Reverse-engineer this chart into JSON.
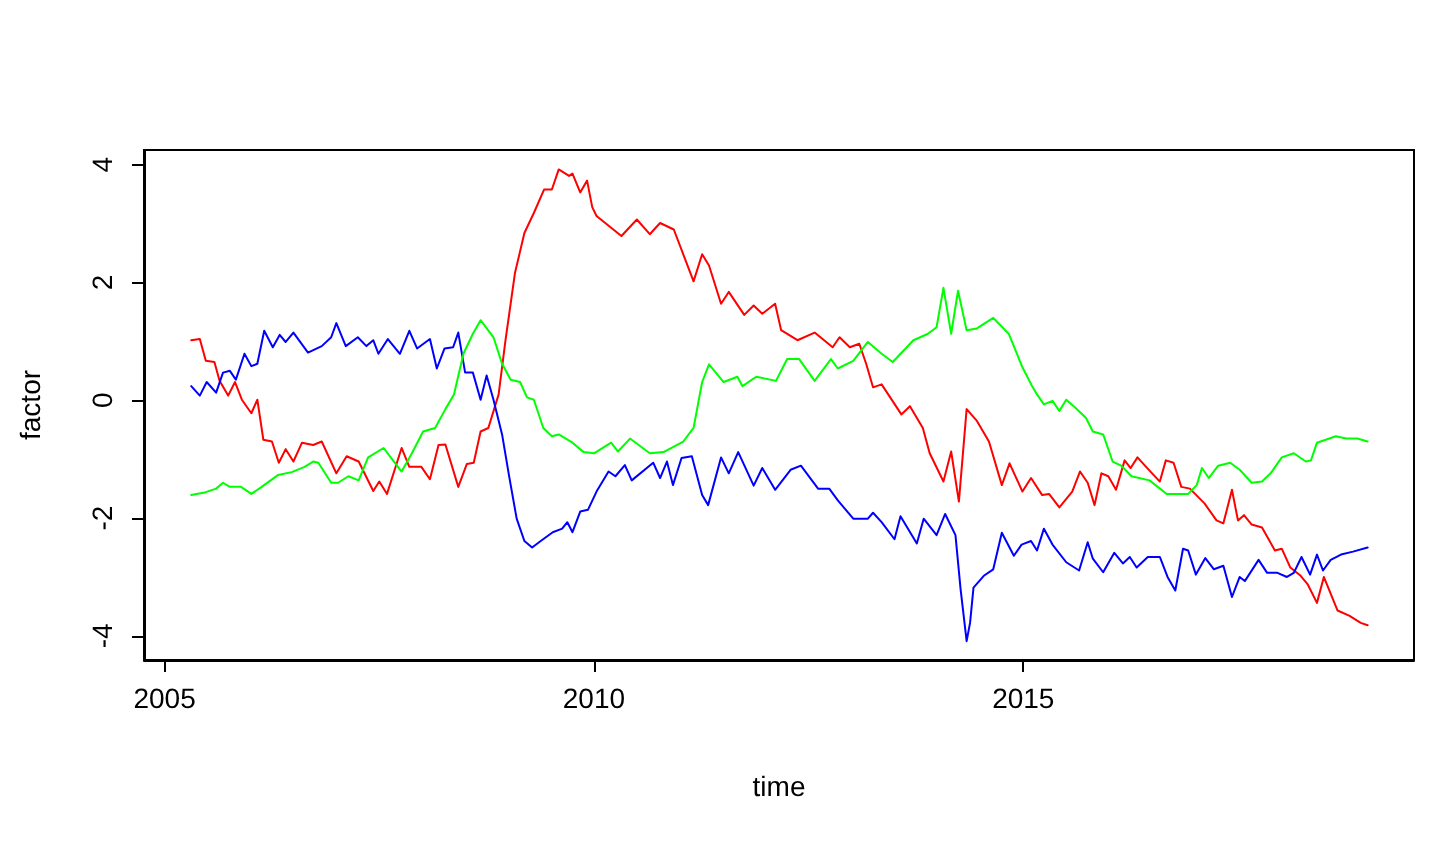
{
  "chart_data": {
    "type": "line",
    "xlabel": "time",
    "ylabel": "factor",
    "xlim": [
      2004.76,
      2019.55
    ],
    "ylim": [
      -4.41,
      4.25
    ],
    "xticks": [
      2005,
      2010,
      2015
    ],
    "yticks": [
      -4,
      -2,
      0,
      2,
      4
    ],
    "marker": "none",
    "line_style": "solid",
    "series": [
      {
        "color": "#ff0000",
        "x": [
          2005.31,
          2005.41,
          2005.48,
          2005.58,
          2005.64,
          2005.74,
          2005.82,
          2005.9,
          2006.01,
          2006.08,
          2006.15,
          2006.25,
          2006.33,
          2006.41,
          2006.5,
          2006.6,
          2006.73,
          2006.83,
          2007.0,
          2007.12,
          2007.26,
          2007.43,
          2007.5,
          2007.59,
          2007.76,
          2007.85,
          2007.99,
          2008.09,
          2008.19,
          2008.27,
          2008.42,
          2008.52,
          2008.6,
          2008.68,
          2008.77,
          2008.89,
          2008.97,
          2009.08,
          2009.19,
          2009.3,
          2009.42,
          2009.51,
          2009.59,
          2009.71,
          2009.75,
          2009.84,
          2009.92,
          2009.98,
          2010.03,
          2010.32,
          2010.5,
          2010.65,
          2010.77,
          2010.93,
          2011.16,
          2011.26,
          2011.34,
          2011.48,
          2011.57,
          2011.75,
          2011.86,
          2011.96,
          2012.11,
          2012.18,
          2012.37,
          2012.57,
          2012.78,
          2012.86,
          2012.98,
          2013.09,
          2013.17,
          2013.25,
          2013.35,
          2013.58,
          2013.68,
          2013.83,
          2013.91,
          2014.07,
          2014.16,
          2014.25,
          2014.34,
          2014.46,
          2014.6,
          2014.75,
          2014.84,
          2014.99,
          2015.09,
          2015.22,
          2015.3,
          2015.42,
          2015.57,
          2015.66,
          2015.75,
          2015.83,
          2015.91,
          2015.99,
          2016.08,
          2016.18,
          2016.25,
          2016.33,
          2016.43,
          2016.59,
          2016.66,
          2016.75,
          2016.84,
          2016.94,
          2017.11,
          2017.25,
          2017.33,
          2017.43,
          2017.5,
          2017.57,
          2017.66,
          2017.78,
          2017.93,
          2018.01,
          2018.11,
          2018.23,
          2018.31,
          2018.42,
          2018.5,
          2018.66,
          2018.8,
          2018.93,
          2019.01
        ],
        "values": [
          1.02,
          1.04,
          0.67,
          0.65,
          0.33,
          0.08,
          0.31,
          0.01,
          -0.22,
          0.01,
          -0.67,
          -0.7,
          -1.06,
          -0.83,
          -1.04,
          -0.72,
          -0.76,
          -0.7,
          -1.24,
          -0.95,
          -1.04,
          -1.54,
          -1.38,
          -1.59,
          -0.81,
          -1.13,
          -1.13,
          -1.34,
          -0.76,
          -0.75,
          -1.47,
          -1.08,
          -1.06,
          -0.53,
          -0.47,
          0.1,
          1.02,
          2.16,
          2.84,
          3.18,
          3.58,
          3.58,
          3.92,
          3.81,
          3.85,
          3.53,
          3.73,
          3.28,
          3.13,
          2.79,
          3.07,
          2.82,
          3.01,
          2.9,
          2.02,
          2.48,
          2.29,
          1.64,
          1.84,
          1.45,
          1.61,
          1.47,
          1.64,
          1.19,
          1.02,
          1.15,
          0.9,
          1.07,
          0.9,
          0.96,
          0.62,
          0.22,
          0.27,
          -0.24,
          -0.1,
          -0.47,
          -0.9,
          -1.38,
          -0.87,
          -1.72,
          -0.15,
          -0.35,
          -0.7,
          -1.44,
          -1.07,
          -1.55,
          -1.32,
          -1.61,
          -1.59,
          -1.82,
          -1.55,
          -1.21,
          -1.4,
          -1.78,
          -1.24,
          -1.29,
          -1.52,
          -1.02,
          -1.15,
          -0.97,
          -1.13,
          -1.38,
          -1.02,
          -1.06,
          -1.47,
          -1.5,
          -1.75,
          -2.04,
          -2.09,
          -1.52,
          -2.04,
          -1.95,
          -2.11,
          -2.16,
          -2.55,
          -2.52,
          -2.84,
          -2.98,
          -3.12,
          -3.44,
          -3.0,
          -3.57,
          -3.66,
          -3.78,
          -3.82
        ]
      },
      {
        "color": "#0000ff",
        "x": [
          2005.31,
          2005.41,
          2005.49,
          2005.6,
          2005.68,
          2005.76,
          2005.83,
          2005.93,
          2006.01,
          2006.08,
          2006.16,
          2006.26,
          2006.34,
          2006.41,
          2006.5,
          2006.67,
          2006.83,
          2006.94,
          2007.0,
          2007.11,
          2007.25,
          2007.35,
          2007.43,
          2007.49,
          2007.6,
          2007.74,
          2007.85,
          2007.94,
          2008.09,
          2008.17,
          2008.26,
          2008.36,
          2008.42,
          2008.5,
          2008.59,
          2008.68,
          2008.75,
          2008.83,
          2008.93,
          2009.01,
          2009.1,
          2009.19,
          2009.28,
          2009.38,
          2009.52,
          2009.63,
          2009.69,
          2009.75,
          2009.84,
          2009.93,
          2010.03,
          2010.17,
          2010.25,
          2010.36,
          2010.44,
          2010.69,
          2010.77,
          2010.85,
          2010.92,
          2011.02,
          2011.14,
          2011.26,
          2011.33,
          2011.48,
          2011.57,
          2011.68,
          2011.86,
          2011.96,
          2012.11,
          2012.29,
          2012.41,
          2012.61,
          2012.74,
          2012.84,
          2013.02,
          2013.19,
          2013.25,
          2013.35,
          2013.5,
          2013.57,
          2013.76,
          2013.84,
          2013.99,
          2014.09,
          2014.21,
          2014.27,
          2014.34,
          2014.38,
          2014.42,
          2014.54,
          2014.65,
          2014.75,
          2014.89,
          2014.98,
          2015.09,
          2015.16,
          2015.24,
          2015.34,
          2015.5,
          2015.65,
          2015.75,
          2015.81,
          2015.93,
          2016.06,
          2016.16,
          2016.24,
          2016.32,
          2016.45,
          2016.59,
          2016.68,
          2016.77,
          2016.86,
          2016.92,
          2017.01,
          2017.12,
          2017.22,
          2017.33,
          2017.43,
          2017.52,
          2017.58,
          2017.74,
          2017.84,
          2017.96,
          2018.07,
          2018.15,
          2018.24,
          2018.34,
          2018.42,
          2018.49,
          2018.58,
          2018.7,
          2018.84,
          2019.01
        ],
        "values": [
          0.24,
          0.08,
          0.31,
          0.13,
          0.47,
          0.5,
          0.35,
          0.79,
          0.58,
          0.62,
          1.18,
          0.9,
          1.11,
          0.99,
          1.15,
          0.81,
          0.92,
          1.07,
          1.31,
          0.92,
          1.07,
          0.92,
          1.02,
          0.79,
          1.04,
          0.79,
          1.18,
          0.88,
          1.04,
          0.54,
          0.88,
          0.9,
          1.15,
          0.47,
          0.47,
          0.01,
          0.42,
          0.01,
          -0.58,
          -1.27,
          -2.01,
          -2.39,
          -2.5,
          -2.39,
          -2.24,
          -2.18,
          -2.07,
          -2.24,
          -1.89,
          -1.86,
          -1.55,
          -1.21,
          -1.29,
          -1.1,
          -1.36,
          -1.06,
          -1.32,
          -1.04,
          -1.44,
          -0.98,
          -0.95,
          -1.61,
          -1.78,
          -0.97,
          -1.24,
          -0.88,
          -1.45,
          -1.15,
          -1.52,
          -1.18,
          -1.11,
          -1.5,
          -1.5,
          -1.7,
          -2.01,
          -2.01,
          -1.91,
          -2.07,
          -2.36,
          -1.97,
          -2.43,
          -2.01,
          -2.29,
          -1.93,
          -2.29,
          -3.21,
          -4.09,
          -3.78,
          -3.18,
          -2.98,
          -2.87,
          -2.25,
          -2.64,
          -2.45,
          -2.39,
          -2.55,
          -2.18,
          -2.45,
          -2.75,
          -2.89,
          -2.41,
          -2.69,
          -2.92,
          -2.59,
          -2.77,
          -2.66,
          -2.84,
          -2.66,
          -2.66,
          -3.0,
          -3.23,
          -2.52,
          -2.55,
          -2.96,
          -2.68,
          -2.87,
          -2.81,
          -3.34,
          -3.0,
          -3.07,
          -2.71,
          -2.93,
          -2.93,
          -3.0,
          -2.93,
          -2.66,
          -2.96,
          -2.62,
          -2.89,
          -2.71,
          -2.62,
          -2.57,
          -2.5
        ]
      },
      {
        "color": "#00ff00",
        "x": [
          2005.31,
          2005.48,
          2005.6,
          2005.68,
          2005.76,
          2005.89,
          2006.01,
          2006.13,
          2006.32,
          2006.48,
          2006.63,
          2006.73,
          2006.79,
          2006.94,
          2007.02,
          2007.14,
          2007.26,
          2007.37,
          2007.55,
          2007.66,
          2007.76,
          2007.88,
          2008.01,
          2008.15,
          2008.27,
          2008.37,
          2008.48,
          2008.59,
          2008.68,
          2008.83,
          2008.93,
          2009.03,
          2009.14,
          2009.22,
          2009.3,
          2009.41,
          2009.51,
          2009.59,
          2009.75,
          2009.88,
          2010.0,
          2010.2,
          2010.28,
          2010.42,
          2010.65,
          2010.81,
          2011.04,
          2011.16,
          2011.26,
          2011.34,
          2011.51,
          2011.67,
          2011.73,
          2011.89,
          2012.12,
          2012.25,
          2012.39,
          2012.57,
          2012.76,
          2012.84,
          2013.02,
          2013.19,
          2013.35,
          2013.48,
          2013.72,
          2013.89,
          2013.99,
          2014.07,
          2014.16,
          2014.24,
          2014.34,
          2014.46,
          2014.65,
          2014.83,
          2014.99,
          2015.11,
          2015.16,
          2015.24,
          2015.34,
          2015.42,
          2015.5,
          2015.61,
          2015.73,
          2015.81,
          2015.93,
          2016.04,
          2016.14,
          2016.26,
          2016.47,
          2016.67,
          2016.92,
          2017.02,
          2017.08,
          2017.16,
          2017.27,
          2017.41,
          2017.52,
          2017.66,
          2017.78,
          2017.88,
          2018.01,
          2018.15,
          2018.29,
          2018.35,
          2018.42,
          2018.64,
          2018.76,
          2018.89,
          2019.01
        ],
        "values": [
          -1.61,
          -1.56,
          -1.5,
          -1.4,
          -1.47,
          -1.47,
          -1.59,
          -1.47,
          -1.27,
          -1.22,
          -1.13,
          -1.04,
          -1.06,
          -1.4,
          -1.4,
          -1.29,
          -1.36,
          -0.97,
          -0.81,
          -1.02,
          -1.21,
          -0.9,
          -0.53,
          -0.47,
          -0.15,
          0.1,
          0.79,
          1.13,
          1.36,
          1.07,
          0.62,
          0.35,
          0.31,
          0.05,
          0.01,
          -0.47,
          -0.61,
          -0.58,
          -0.72,
          -0.88,
          -0.9,
          -0.72,
          -0.87,
          -0.65,
          -0.9,
          -0.88,
          -0.7,
          -0.47,
          0.31,
          0.61,
          0.31,
          0.4,
          0.24,
          0.4,
          0.33,
          0.7,
          0.7,
          0.33,
          0.7,
          0.54,
          0.67,
          0.99,
          0.79,
          0.65,
          1.02,
          1.13,
          1.24,
          1.91,
          1.13,
          1.86,
          1.19,
          1.22,
          1.4,
          1.13,
          0.56,
          0.22,
          0.1,
          -0.07,
          -0.01,
          -0.18,
          0.01,
          -0.13,
          -0.3,
          -0.53,
          -0.58,
          -1.04,
          -1.11,
          -1.29,
          -1.36,
          -1.59,
          -1.59,
          -1.44,
          -1.15,
          -1.32,
          -1.11,
          -1.06,
          -1.18,
          -1.4,
          -1.38,
          -1.24,
          -0.97,
          -0.9,
          -1.04,
          -1.02,
          -0.72,
          -0.61,
          -0.65,
          -0.65,
          -0.7
        ]
      }
    ]
  }
}
